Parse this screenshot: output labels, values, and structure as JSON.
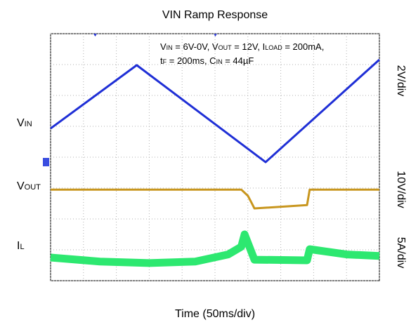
{
  "chart_data": {
    "type": "line",
    "title": "VIN Ramp Response",
    "x_label": "Time (50ms/div)",
    "annotation": [
      [
        {
          "t": "V"
        },
        {
          "sub": "IN"
        },
        {
          "t": " = 6V-0V, V"
        },
        {
          "sub": "OUT"
        },
        {
          "t": " = 12V, I"
        },
        {
          "sub": "LOAD"
        },
        {
          "t": " = 200mA,"
        }
      ],
      [
        {
          "t": "t"
        },
        {
          "sub": "F"
        },
        {
          "t": " = 200ms, C"
        },
        {
          "sub": "IN"
        },
        {
          "t": " = 44µF"
        }
      ]
    ],
    "xlim": [
      0,
      500
    ],
    "xticks": [
      0,
      50,
      100,
      150,
      200,
      250,
      300,
      350,
      400,
      450,
      500
    ],
    "ylim": [
      0,
      8
    ],
    "yticks": [
      0,
      1,
      2,
      3,
      4,
      5,
      6,
      7,
      8
    ],
    "grid": true,
    "series": [
      {
        "label": {
          "t": "V",
          "sub": "IN"
        },
        "scale": "2V/div",
        "color": "#1f2fd6",
        "width": 3,
        "x": [
          0,
          131,
          327,
          500
        ],
        "values": [
          4.93,
          6.98,
          3.84,
          7.16
        ]
      },
      {
        "label": {
          "t": "V",
          "sub": "OUT"
        },
        "scale": "10V/div",
        "color": "#c8961e",
        "width": 3,
        "x": [
          0,
          290,
          300,
          305,
          310,
          390,
          394,
          500
        ],
        "values": [
          2.95,
          2.95,
          2.75,
          2.55,
          2.34,
          2.45,
          2.95,
          2.95
        ]
      },
      {
        "label": {
          "t": "I",
          "sub": "L"
        },
        "scale": "5A/div",
        "color": "#2de870",
        "width": 11,
        "x": [
          0,
          75,
          150,
          220,
          270,
          290,
          295,
          310,
          390,
          394,
          450,
          500
        ],
        "values": [
          0.75,
          0.62,
          0.57,
          0.62,
          0.85,
          1.1,
          1.5,
          0.68,
          0.66,
          1.02,
          0.85,
          0.8
        ]
      }
    ]
  }
}
